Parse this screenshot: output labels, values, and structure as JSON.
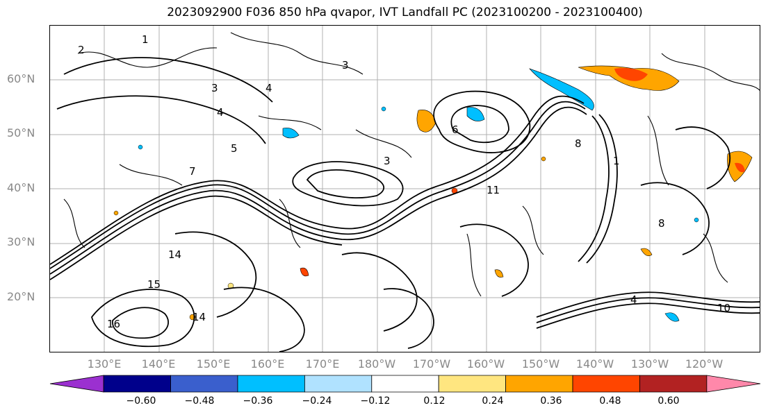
{
  "title": "2023092900 F036 850 hPa qvapor, IVT Landfall PC (2023100200 - 2023100400)",
  "lat_labels": [
    "60°N",
    "50°N",
    "40°N",
    "30°N",
    "20°N"
  ],
  "lon_labels": [
    "130°E",
    "140°E",
    "150°E",
    "160°E",
    "170°E",
    "180°W",
    "170°W",
    "160°W",
    "150°W",
    "140°W",
    "130°W",
    "120°W"
  ],
  "contour_labels": [
    "1",
    "2",
    "3",
    "4",
    "5",
    "6",
    "7",
    "8",
    "10",
    "11",
    "14",
    "15",
    "16"
  ],
  "colorbar": {
    "ticks": [
      "−0.60",
      "−0.48",
      "−0.36",
      "−0.24",
      "−0.12",
      "0.12",
      "0.24",
      "0.36",
      "0.48",
      "0.60"
    ],
    "colors": [
      "#9b30d0",
      "#00008b",
      "#3a5fcd",
      "#00bfff",
      "#b0e2ff",
      "#ffffff",
      "#ffe680",
      "#ffa500",
      "#ff4500",
      "#b22222",
      "#ff88aa"
    ]
  }
}
